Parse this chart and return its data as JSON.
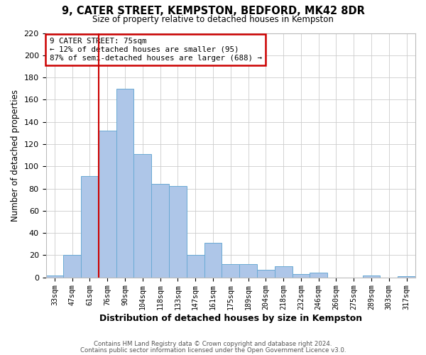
{
  "title": "9, CATER STREET, KEMPSTON, BEDFORD, MK42 8DR",
  "subtitle": "Size of property relative to detached houses in Kempston",
  "xlabel": "Distribution of detached houses by size in Kempston",
  "ylabel": "Number of detached properties",
  "bar_labels": [
    "33sqm",
    "47sqm",
    "61sqm",
    "76sqm",
    "90sqm",
    "104sqm",
    "118sqm",
    "133sqm",
    "147sqm",
    "161sqm",
    "175sqm",
    "189sqm",
    "204sqm",
    "218sqm",
    "232sqm",
    "246sqm",
    "260sqm",
    "275sqm",
    "289sqm",
    "303sqm",
    "317sqm"
  ],
  "bar_values": [
    2,
    20,
    91,
    132,
    170,
    111,
    84,
    82,
    20,
    31,
    12,
    12,
    7,
    10,
    3,
    4,
    0,
    0,
    2,
    0,
    1
  ],
  "bar_color": "#aec6e8",
  "bar_edge_color": "#6aaad4",
  "ylim": [
    0,
    220
  ],
  "yticks": [
    0,
    20,
    40,
    60,
    80,
    100,
    120,
    140,
    160,
    180,
    200,
    220
  ],
  "vline_index": 3,
  "vline_color": "#cc0000",
  "annotation_lines": [
    "9 CATER STREET: 75sqm",
    "← 12% of detached houses are smaller (95)",
    "87% of semi-detached houses are larger (688) →"
  ],
  "footer_line1": "Contains HM Land Registry data © Crown copyright and database right 2024.",
  "footer_line2": "Contains public sector information licensed under the Open Government Licence v3.0.",
  "background_color": "#ffffff",
  "grid_color": "#cccccc"
}
